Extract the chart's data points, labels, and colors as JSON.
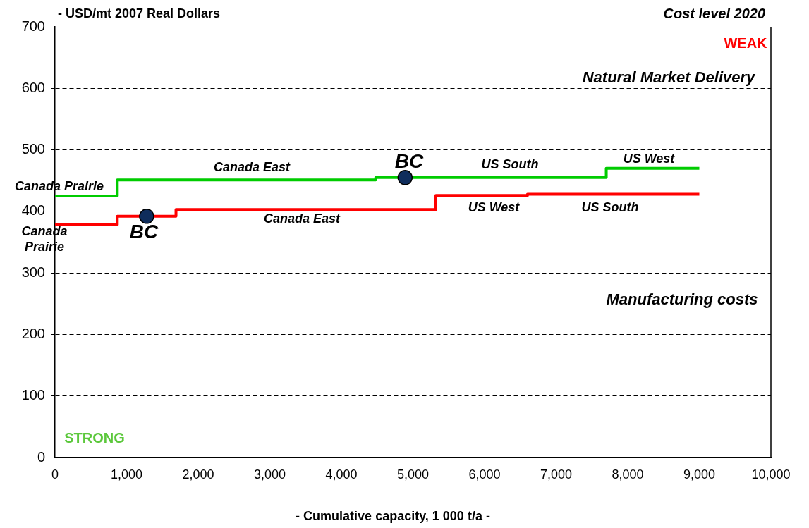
{
  "chart_data": {
    "type": "step",
    "subtitle": "Cost level 2020",
    "ylabel": "- USD/mt 2007 Real Dollars",
    "xlabel": "- Cumulative capacity, 1 000 t/a -",
    "series": [
      {
        "color": "#00cc00",
        "x": [
          0,
          870,
          4480,
          7700,
          9000
        ],
        "values": [
          425,
          451,
          455,
          470,
          470
        ]
      },
      {
        "color": "#ff0000",
        "x": [
          0,
          870,
          1690,
          5320,
          6600,
          9000
        ],
        "values": [
          378,
          392,
          403,
          426,
          428,
          428
        ]
      },
      {
        "type": "scatter",
        "color": "#0f2d5c",
        "marker": "circle",
        "x": [
          1280,
          4890
        ],
        "values": [
          392,
          455
        ]
      }
    ],
    "xlim": [
      0,
      10000
    ],
    "xticks": [
      0,
      {
        "value": 1000,
        "label": "1,000"
      },
      {
        "value": 2000,
        "label": "2,000"
      },
      {
        "value": 3000,
        "label": "3,000"
      },
      {
        "value": 4000,
        "label": "4,000"
      },
      {
        "value": 5000,
        "label": "5,000"
      },
      {
        "value": 6000,
        "label": "6,000"
      },
      {
        "value": 7000,
        "label": "7,000"
      },
      {
        "value": 8000,
        "label": "8,000"
      },
      {
        "value": 9000,
        "label": "9,000"
      },
      {
        "value": 10000,
        "label": "10,000"
      }
    ],
    "ylim": [
      0,
      700
    ],
    "yticks": [
      0,
      100,
      200,
      300,
      400,
      500,
      600,
      700
    ],
    "grid": "y",
    "legend": false,
    "annotations": [
      "Canada Prairie",
      "Canada East",
      "BC",
      "US South",
      "US West",
      "Canada Prairie",
      "BC",
      "Canada East",
      "US West",
      "US South",
      "Natural Market Delivery",
      "Manufacturing costs",
      "WEAK",
      "STRONG"
    ]
  }
}
